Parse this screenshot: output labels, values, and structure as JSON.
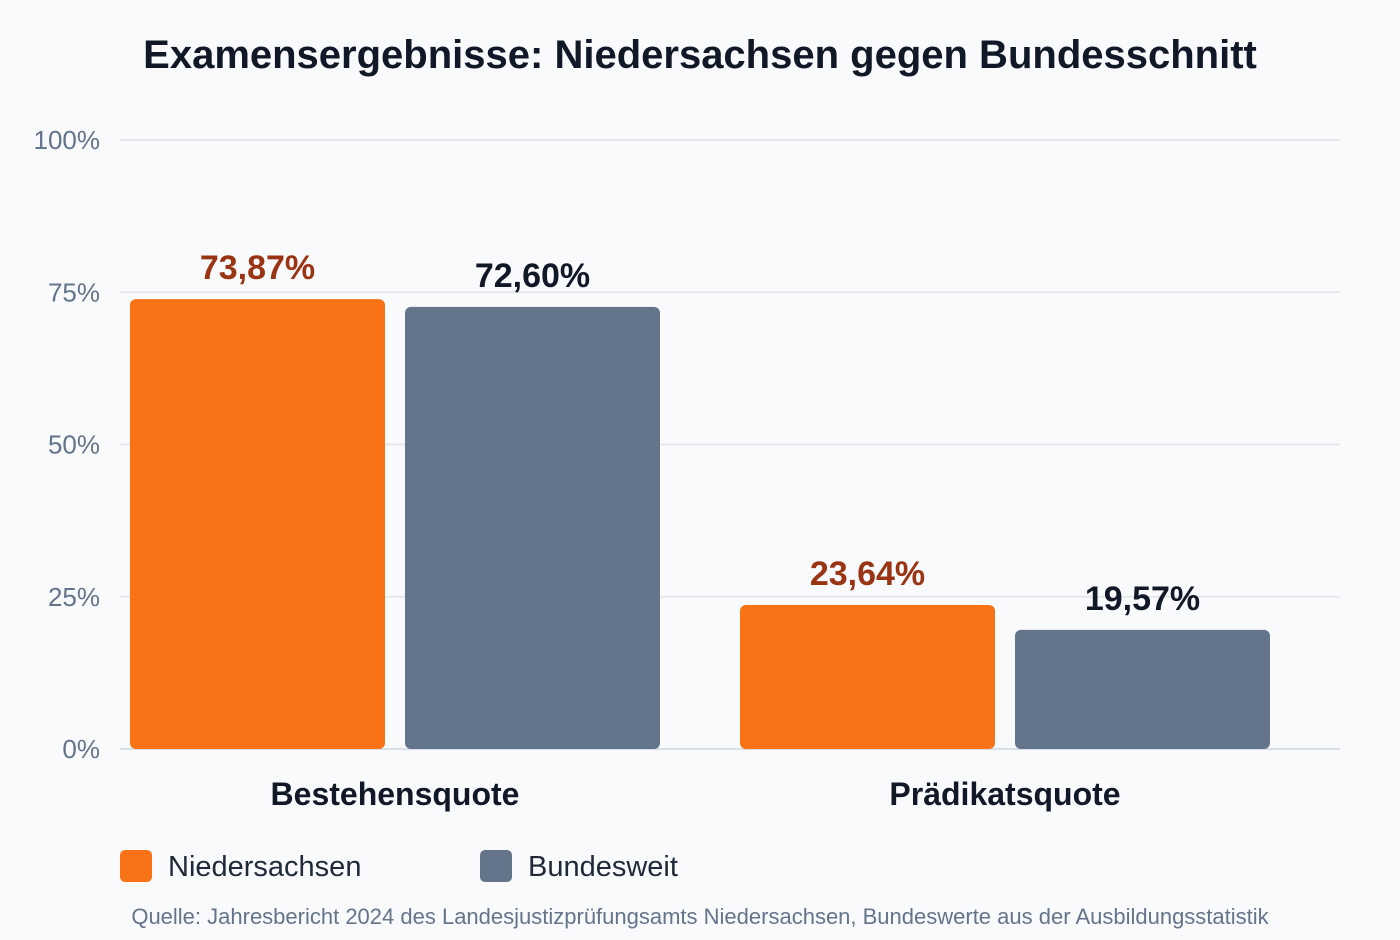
{
  "chart_data": {
    "type": "bar",
    "title": "Examensergebnisse: Niedersachsen gegen Bundesschnitt",
    "categories": [
      "Bestehensquote",
      "Prädikatsquote"
    ],
    "series": [
      {
        "name": "Niedersachsen",
        "values": [
          73.87,
          23.64
        ],
        "labels": [
          "73,87%",
          "23,64%"
        ],
        "color": "#f97316",
        "label_color": "#9a3412"
      },
      {
        "name": "Bundesweit",
        "values": [
          72.6,
          19.57
        ],
        "labels": [
          "72,60%",
          "19,57%"
        ],
        "color": "#64748b",
        "label_color": "#111827"
      }
    ],
    "ylim": [
      0,
      100
    ],
    "yticks": [
      0,
      25,
      50,
      75,
      100
    ],
    "ytick_labels": [
      "0%",
      "25%",
      "50%",
      "75%",
      "100%"
    ],
    "grid": true,
    "legend_position": "bottom-left",
    "source": "Quelle: Jahresbericht 2024 des Landesjustizprüfungsamts Niedersachsen, Bundeswerte aus der Ausbildungsstatistik"
  }
}
